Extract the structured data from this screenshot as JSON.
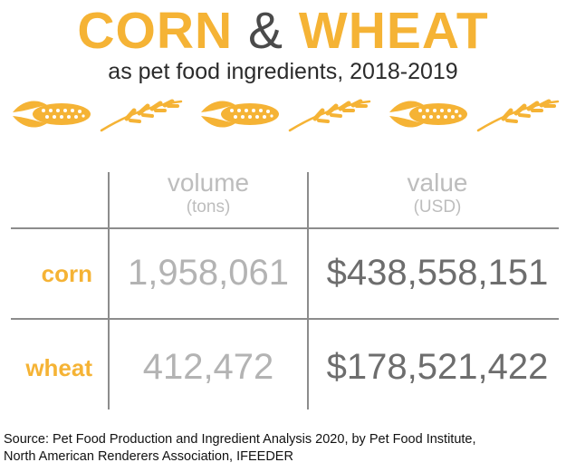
{
  "header": {
    "title_word1": "CORN",
    "title_amp": "&",
    "title_word2": "WHEAT",
    "subtitle": "as pet food ingredients, 2018-2019"
  },
  "icons": [
    "corn-icon",
    "wheat-icon",
    "corn-icon",
    "wheat-icon",
    "corn-icon",
    "wheat-icon"
  ],
  "colors": {
    "accent": "#f5b335",
    "grid": "#8c8c8c",
    "muted_text": "#b3b3b3",
    "value_text": "#6d6d6d"
  },
  "chart_data": {
    "type": "table",
    "columns": [
      {
        "label": "volume",
        "unit": "(tons)"
      },
      {
        "label": "value",
        "unit": "(USD)"
      }
    ],
    "rows": [
      {
        "label": "corn",
        "volume": "1,958,061",
        "value": "$438,558,151"
      },
      {
        "label": "wheat",
        "volume": "412,472",
        "value": "$178,521,422"
      }
    ]
  },
  "footer": {
    "source_line1": "Source: Pet Food Production and Ingredient Analysis 2020, by Pet Food Institute,",
    "source_line2": "North American Renderers Association, IFEEDER"
  }
}
